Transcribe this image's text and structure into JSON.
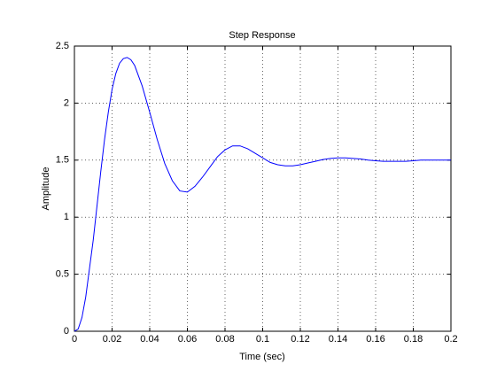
{
  "chart_data": {
    "type": "line",
    "title": "Step Response",
    "x_label": "Time (sec)",
    "y_label": "Amplitude",
    "x": [
      0,
      0.002,
      0.004,
      0.006,
      0.008,
      0.01,
      0.012,
      0.014,
      0.016,
      0.018,
      0.02,
      0.022,
      0.024,
      0.026,
      0.028,
      0.03,
      0.032,
      0.036,
      0.04,
      0.044,
      0.048,
      0.052,
      0.056,
      0.06,
      0.064,
      0.068,
      0.072,
      0.076,
      0.08,
      0.084,
      0.088,
      0.092,
      0.096,
      0.1,
      0.104,
      0.108,
      0.112,
      0.116,
      0.12,
      0.124,
      0.128,
      0.132,
      0.136,
      0.14,
      0.144,
      0.148,
      0.152,
      0.156,
      0.16,
      0.164,
      0.168,
      0.172,
      0.176,
      0.18,
      0.184,
      0.188,
      0.192,
      0.196,
      0.2
    ],
    "series": [
      {
        "color": "#0000ff",
        "values": [
          0,
          0.02,
          0.12,
          0.3,
          0.55,
          0.8,
          1.1,
          1.4,
          1.68,
          1.92,
          2.12,
          2.26,
          2.35,
          2.39,
          2.4,
          2.38,
          2.33,
          2.15,
          1.92,
          1.68,
          1.47,
          1.32,
          1.23,
          1.22,
          1.27,
          1.35,
          1.44,
          1.53,
          1.59,
          1.625,
          1.625,
          1.6,
          1.56,
          1.52,
          1.48,
          1.46,
          1.45,
          1.45,
          1.46,
          1.475,
          1.49,
          1.505,
          1.515,
          1.52,
          1.52,
          1.515,
          1.51,
          1.5,
          1.495,
          1.49,
          1.49,
          1.49,
          1.49,
          1.495,
          1.5,
          1.5,
          1.5,
          1.5,
          1.5
        ]
      }
    ],
    "xlim": [
      0,
      0.2
    ],
    "ylim": [
      0,
      2.5
    ],
    "xticks": [
      0,
      0.02,
      0.04,
      0.06,
      0.08,
      0.1,
      0.12,
      0.14,
      0.16,
      0.18,
      0.2
    ],
    "yticks": [
      0,
      0.5,
      1,
      1.5,
      2,
      2.5
    ],
    "grid": true
  }
}
